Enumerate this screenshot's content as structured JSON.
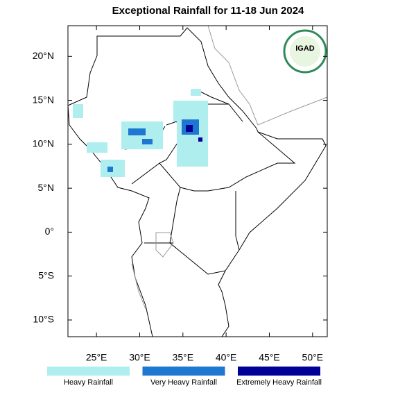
{
  "chart_data": {
    "type": "map",
    "title": "Exceptional Rainfall for 11-18 Jun 2024",
    "logo_text": "IGAD",
    "xlim": [
      21.7,
      51.7
    ],
    "ylim": [
      -11.9,
      23.5
    ],
    "xticks": [
      {
        "value": 25,
        "label": "25°E"
      },
      {
        "value": 30,
        "label": "30°E"
      },
      {
        "value": 35,
        "label": "35°E"
      },
      {
        "value": 40,
        "label": "40°E"
      },
      {
        "value": 45,
        "label": "45°E"
      },
      {
        "value": 50,
        "label": "50°E"
      }
    ],
    "yticks": [
      {
        "value": 20,
        "label": "20°N"
      },
      {
        "value": 15,
        "label": "15°N"
      },
      {
        "value": 10,
        "label": "10°N"
      },
      {
        "value": 5,
        "label": "5°N"
      },
      {
        "value": 0,
        "label": "0°"
      },
      {
        "value": -5,
        "label": "5°S"
      },
      {
        "value": -10,
        "label": "10°S"
      }
    ],
    "legend": [
      {
        "name": "Heavy Rainfall",
        "color": "#aeeeee"
      },
      {
        "name": "Very Heavy Rainfall",
        "color": "#1e78d2"
      },
      {
        "name": "Extremely Heavy Rainfall",
        "color": "#000096"
      }
    ]
  }
}
